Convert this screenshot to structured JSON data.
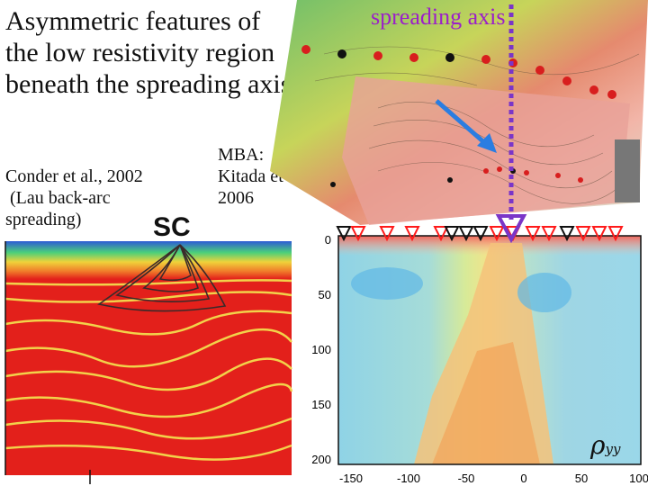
{
  "slide": {
    "title": "Asymmetric features of the low resistivity region beneath the spreading axis",
    "ref_left": [
      "Conder et al., 2002",
      " (Lau back-arc",
      "spreading)"
    ],
    "ref_mba": [
      "MBA:",
      "Kitada et al.,",
      "2006"
    ],
    "spreading_axis_label": "spreading axis",
    "sc_label": "SC",
    "rho_label": "ρ",
    "rho_sub": "yy"
  },
  "colors": {
    "axis_label": "#9b1fc9",
    "model_red": "#e3201b",
    "contour_yellow": "#f2d24a",
    "arrow_blue": "#2a7de1",
    "station_red": "#ff1a1a"
  },
  "chart_data": {
    "type": "heatmap",
    "y_ticks": [
      "0",
      "50",
      "100",
      "150",
      "200"
    ],
    "x_ticks": [
      "-150",
      "-100",
      "-50",
      "0",
      "50",
      "100"
    ]
  }
}
